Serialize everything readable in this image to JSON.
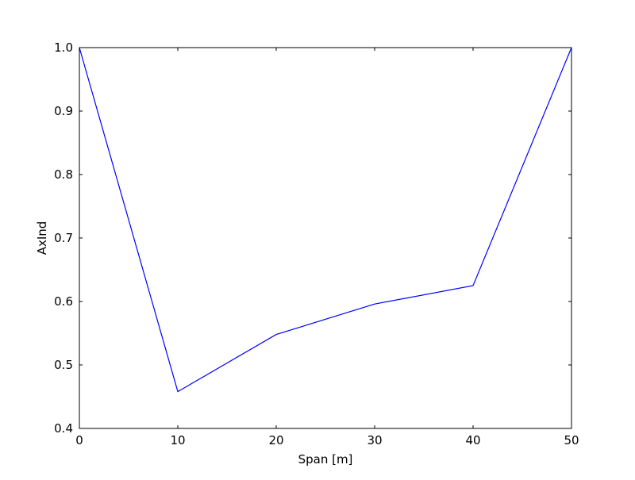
{
  "chart_data": {
    "type": "line",
    "title": "",
    "xlabel": "Span [m]",
    "ylabel": "AxInd",
    "xlim": [
      0,
      50
    ],
    "ylim": [
      0.4,
      1.0
    ],
    "x_ticks": [
      "0",
      "10",
      "20",
      "30",
      "40",
      "50"
    ],
    "y_ticks": [
      "0.4",
      "0.5",
      "0.6",
      "0.7",
      "0.8",
      "0.9",
      "1.0"
    ],
    "grid": false,
    "series": [
      {
        "color": "#0000ff",
        "x": [
          0,
          10,
          20,
          30,
          40,
          50
        ],
        "y": [
          1.0,
          0.458,
          0.548,
          0.596,
          0.625,
          1.0
        ]
      }
    ]
  }
}
